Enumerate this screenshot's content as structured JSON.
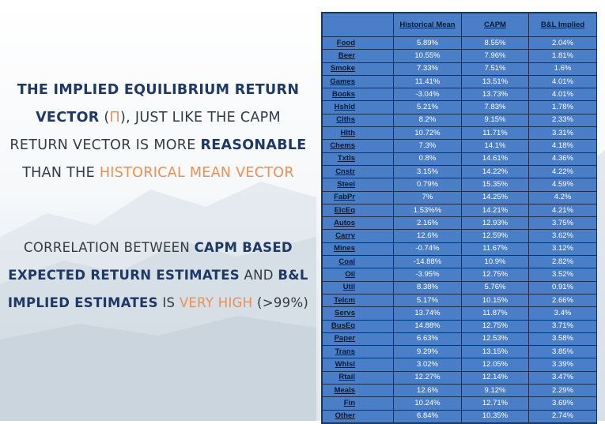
{
  "text_block_1": {
    "line1": {
      "b1": "THE IMPLIED EQUILIBRIUM RETURN"
    },
    "line2": {
      "b1": "VECTOR",
      "p1": " (",
      "o1": "Π",
      "p2": "), JUST LIKE THE CAPM"
    },
    "line3": {
      "p1": "RETURN VECTOR IS MORE ",
      "b1": "REASONABLE"
    },
    "line4": {
      "p1": "THAN THE ",
      "o1": "HISTORICAL MEAN VECTOR"
    }
  },
  "text_block_2": {
    "line1": {
      "p1": "CORRELATION BETWEEN ",
      "b1": "CAPM BASED"
    },
    "line2": {
      "b1": "EXPECTED RETURN ESTIMATES",
      "p1": " AND ",
      "b2": "B&L"
    },
    "line3": {
      "b1": "IMPLIED ESTIMATES",
      "p1": " IS ",
      "o1": "VERY HIGH",
      "p2": " (>99%)"
    }
  },
  "table": {
    "headers": [
      "",
      "Historical Mean",
      "CAPM",
      "B&L Implied"
    ],
    "rows": [
      [
        "Food",
        "5.89%",
        "8.55%",
        "2.04%"
      ],
      [
        "Beer",
        "10.55%",
        "7.96%",
        "1.81%"
      ],
      [
        "Smoke",
        "7.33%",
        "7.51%",
        "1.6%"
      ],
      [
        "Games",
        "11.41%",
        "13.51%",
        "4.01%"
      ],
      [
        "Books",
        "-3.04%",
        "13.73%",
        "4.01%"
      ],
      [
        "Hshld",
        "5.21%",
        "7.83%",
        "1.78%"
      ],
      [
        "Clths",
        "8.2%",
        "9.15%",
        "2.33%"
      ],
      [
        "Hlth",
        "10.72%",
        "11.71%",
        "3.31%"
      ],
      [
        "Chems",
        "7.3%",
        "14.1%",
        "4.18%"
      ],
      [
        "Txtls",
        "0.8%",
        "14.61%",
        "4.36%"
      ],
      [
        "Cnstr",
        "3.15%",
        "14.22%",
        "4.22%"
      ],
      [
        "Steel",
        "0.79%",
        "15.35%",
        "4.59%"
      ],
      [
        "FabPr",
        "7%",
        "14.25%",
        "4.2%"
      ],
      [
        "ElcEq",
        "1.53%%",
        "14.21%",
        "4.21%"
      ],
      [
        "Autos",
        "2.16%",
        "12.93%",
        "3.75%"
      ],
      [
        "Carry",
        "12.6%",
        "12.59%",
        "3.62%"
      ],
      [
        "Mines",
        "-0.74%",
        "11.67%",
        "3.12%"
      ],
      [
        "Coal",
        "-14.88%",
        "10.9%",
        "2.82%"
      ],
      [
        "Oil",
        "-3.95%",
        "12.75%",
        "3.52%"
      ],
      [
        "Util",
        "8.38%",
        "5.76%",
        "0.91%"
      ],
      [
        "Telcm",
        "5.17%",
        "10.15%",
        "2.66%"
      ],
      [
        "Servs",
        "13.74%",
        "11.87%",
        "3.4%"
      ],
      [
        "BusEq",
        "14.88%",
        "12.75%",
        "3.71%"
      ],
      [
        "Paper",
        "6.63%",
        "12.53%",
        "3.58%"
      ],
      [
        "Trans",
        "9.29%",
        "13.15%",
        "3.85%"
      ],
      [
        "Whlsl",
        "3.02%",
        "12.05%",
        "3.39%"
      ],
      [
        "Rtail",
        "12.27%",
        "12.14%",
        "3.47%"
      ],
      [
        "Meals",
        "12.6%",
        "9.12%",
        "2.29%"
      ],
      [
        "Fin",
        "10.24%",
        "12.71%",
        "3.69%"
      ],
      [
        "Other",
        "6.84%",
        "10.35%",
        "2.74%"
      ]
    ]
  },
  "colors": {
    "table_fill": "#4a7ec6",
    "heading_navy": "#1f3864",
    "accent_orange": "#e8905a"
  }
}
